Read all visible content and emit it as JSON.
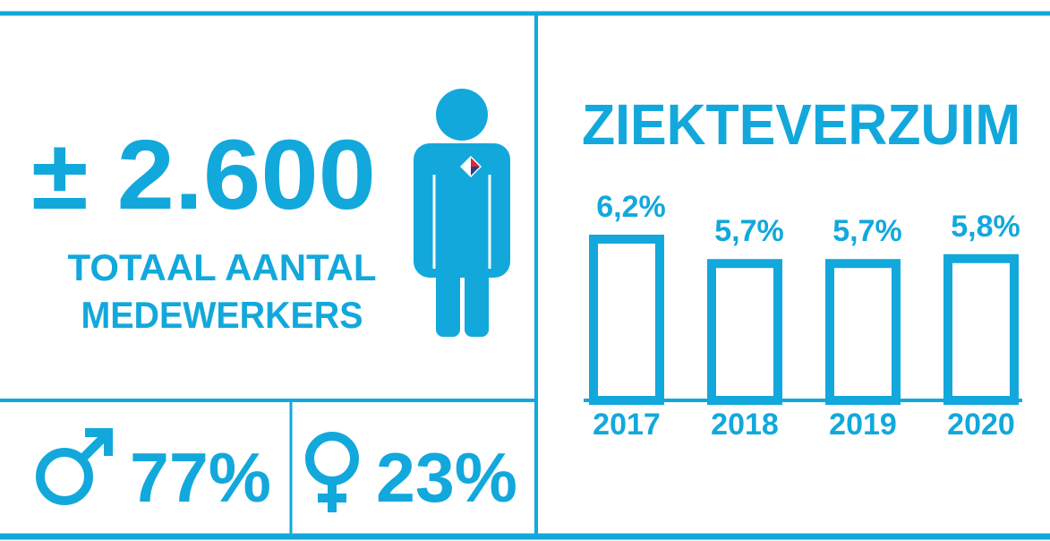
{
  "headline": {
    "count": "± 2.600",
    "label_lines": [
      "TOTAAL AANTAL",
      "MEDEWERKERS"
    ]
  },
  "gender": {
    "male": "77%",
    "female": "23%"
  },
  "chart_data": {
    "type": "bar",
    "title": "ZIEKTEVERZUIM",
    "categories": [
      "2017",
      "2018",
      "2019",
      "2020"
    ],
    "values": [
      6.2,
      5.7,
      5.7,
      5.8
    ],
    "value_labels": [
      "6,2%",
      "5,7%",
      "5,7%",
      "5,8%"
    ],
    "color": "#12a8dc",
    "ylim": [
      2.8,
      6.2
    ]
  }
}
